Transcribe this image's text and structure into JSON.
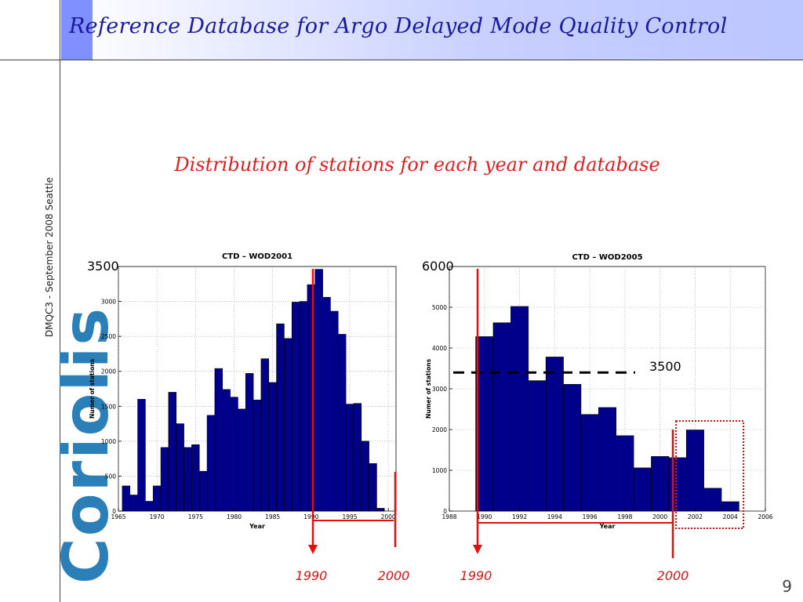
{
  "header": {
    "title": "Reference Database for Argo Delayed Mode Quality Control"
  },
  "sidebar": {
    "caption": "DMQC3 - September 2008  Seattle",
    "logo_text": "Coriolis"
  },
  "subtitle": "Distribution of stations for each year and database",
  "page_number": "9",
  "colors": {
    "bar": "#00008b",
    "annotation": "#e01010",
    "title": "#1a1aa0",
    "logo": "#2a7fb8"
  },
  "chart_data": [
    {
      "type": "bar",
      "title": "CTD – WOD2001",
      "xlabel": "Year",
      "ylabel": "Numer of stations",
      "xlim": [
        1965,
        2001
      ],
      "ylim": [
        0,
        3500
      ],
      "xticks": [
        1965,
        1970,
        1975,
        1980,
        1985,
        1990,
        1995,
        2000
      ],
      "yticks": [
        0,
        500,
        1000,
        1500,
        2000,
        2500,
        3000
      ],
      "grid": true,
      "x": [
        1966,
        1967,
        1968,
        1969,
        1970,
        1971,
        1972,
        1973,
        1974,
        1975,
        1976,
        1977,
        1978,
        1979,
        1980,
        1981,
        1982,
        1983,
        1984,
        1985,
        1986,
        1987,
        1988,
        1989,
        1990,
        1991,
        1992,
        1993,
        1994,
        1995,
        1996,
        1997,
        1998,
        1999
      ],
      "values": [
        360,
        230,
        1600,
        140,
        360,
        910,
        1700,
        1250,
        910,
        950,
        570,
        1370,
        2040,
        1740,
        1630,
        1460,
        1970,
        1590,
        2180,
        1840,
        2680,
        2470,
        2990,
        3000,
        3240,
        3460,
        3060,
        2860,
        2530,
        1530,
        1540,
        1000,
        680,
        40
      ],
      "annotations": {
        "ymax_label": "3500",
        "markers": [
          "1990",
          "2000"
        ]
      }
    },
    {
      "type": "bar",
      "title": "CTD – WOD2005",
      "xlabel": "Year",
      "ylabel": "Numer of stations",
      "xlim": [
        1988,
        2006
      ],
      "ylim": [
        0,
        6000
      ],
      "xticks": [
        1988,
        1990,
        1992,
        1994,
        1996,
        1998,
        2000,
        2002,
        2004,
        2006
      ],
      "yticks": [
        0,
        1000,
        2000,
        3000,
        4000,
        5000
      ],
      "grid": true,
      "x": [
        1990,
        1991,
        1992,
        1993,
        1994,
        1995,
        1996,
        1997,
        1998,
        1999,
        2000,
        2001,
        2002,
        2003,
        2004
      ],
      "values": [
        4280,
        4620,
        5020,
        3200,
        3780,
        3110,
        2370,
        2540,
        1850,
        1060,
        1340,
        1310,
        1990,
        560,
        230
      ],
      "annotations": {
        "ymax_label": "6000",
        "threshold_value": 3400,
        "threshold_label": "3500",
        "markers": [
          "1990",
          "2000"
        ]
      }
    }
  ]
}
